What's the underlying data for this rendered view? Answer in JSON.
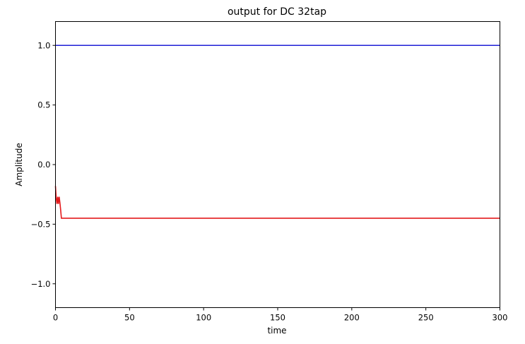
{
  "chart_data": {
    "type": "line",
    "title": "output for DC 32tap",
    "xlabel": "time",
    "ylabel": "Amplitude",
    "xlim": [
      0,
      300
    ],
    "ylim": [
      -1.2,
      1.2
    ],
    "xticks": [
      0,
      50,
      100,
      150,
      200,
      250,
      300
    ],
    "xtick_labels": [
      "0",
      "50",
      "100",
      "150",
      "200",
      "250",
      "300"
    ],
    "yticks": [
      1.0,
      0.5,
      0.0,
      -0.5,
      -1.0
    ],
    "ytick_labels": [
      "1.0",
      "0.5",
      "0.0",
      "−0.5",
      "−1.0"
    ],
    "grid": false,
    "series": [
      {
        "color": "#1f1fd6",
        "x": [
          0,
          300
        ],
        "y": [
          1.0,
          1.0
        ]
      },
      {
        "color": "#e41a1c",
        "x": [
          0,
          0.5,
          1,
          1.5,
          2,
          2.5,
          3,
          3.5,
          4,
          5,
          300
        ],
        "y": [
          -0.18,
          -0.28,
          -0.33,
          -0.27,
          -0.33,
          -0.27,
          -0.32,
          -0.38,
          -0.45,
          -0.45,
          -0.45
        ]
      }
    ]
  }
}
